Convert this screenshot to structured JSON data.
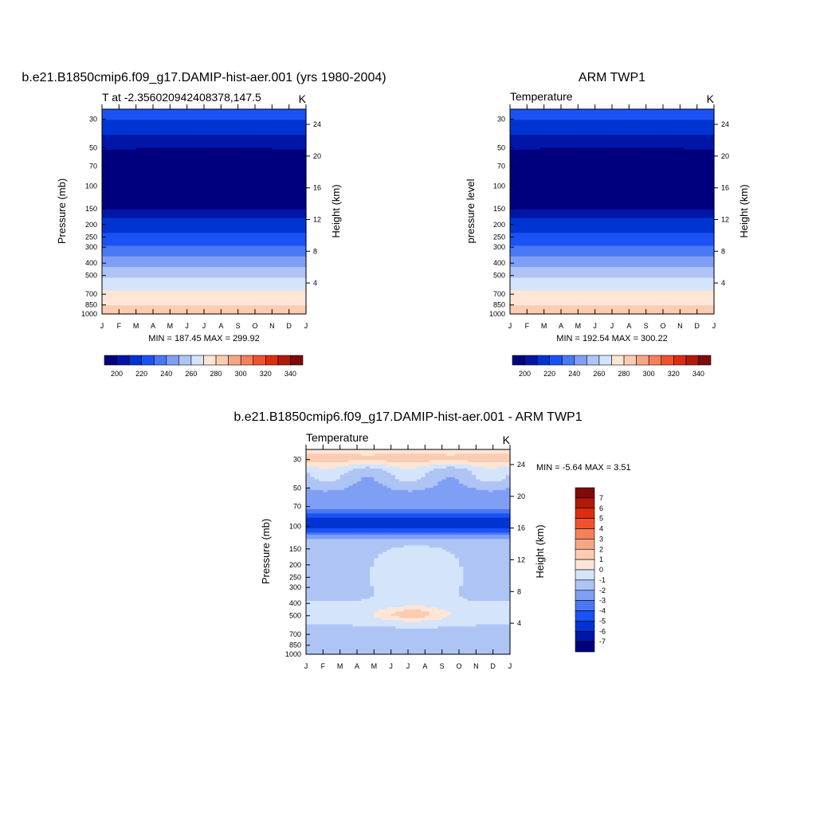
{
  "figure": {
    "panel1_title": "b.e21.B1850cmip6.f09_g17.DAMIP-hist-aer.001 (yrs 1980-2004)",
    "panel2_title": "ARM TWP1",
    "panel3_title": "b.e21.B1850cmip6.f09_g17.DAMIP-hist-aer.001 - ARM TWP1"
  },
  "chart_data": [
    {
      "type": "heatmap",
      "subtitle_left": "T at -2.356020942408378,147.5",
      "subtitle_right": "K",
      "ylabel": "Pressure (mb)",
      "ylabel_right": "Height (km)",
      "x_ticks": [
        "J",
        "F",
        "M",
        "A",
        "M",
        "J",
        "J",
        "A",
        "S",
        "O",
        "N",
        "D",
        "J"
      ],
      "y_ticks": [
        30,
        50,
        70,
        100,
        150,
        200,
        250,
        300,
        400,
        500,
        700,
        850,
        1000
      ],
      "y_log": true,
      "height_ticks": [
        24,
        20,
        16,
        12,
        8,
        4
      ],
      "minmax": "MIN = 187.45 MAX = 299.92",
      "colorbar_levels": [
        190,
        200,
        210,
        220,
        230,
        240,
        250,
        260,
        270,
        280,
        290,
        300,
        310,
        320,
        330,
        340,
        350
      ],
      "colorbar_labels": [
        "200",
        "220",
        "240",
        "260",
        "280",
        "300",
        "320",
        "340"
      ],
      "levels_profile": [
        {
          "p": 30,
          "value": 220
        },
        {
          "p": 45,
          "value": 205
        },
        {
          "p": 60,
          "value": 195
        },
        {
          "p": 140,
          "value": 190
        },
        {
          "p": 160,
          "value": 205
        },
        {
          "p": 200,
          "value": 215
        },
        {
          "p": 260,
          "value": 225
        },
        {
          "p": 320,
          "value": 235
        },
        {
          "p": 400,
          "value": 245
        },
        {
          "p": 470,
          "value": 255
        },
        {
          "p": 560,
          "value": 265
        },
        {
          "p": 760,
          "value": 275
        },
        {
          "p": 1000,
          "value": 285
        }
      ]
    },
    {
      "type": "heatmap",
      "subtitle_left": "Temperature",
      "subtitle_right": "K",
      "ylabel": "pressure level",
      "ylabel_right": "Height (km)",
      "x_ticks": [
        "J",
        "F",
        "M",
        "A",
        "M",
        "J",
        "J",
        "A",
        "S",
        "O",
        "N",
        "D",
        "J"
      ],
      "y_ticks": [
        30,
        50,
        70,
        100,
        150,
        200,
        250,
        300,
        400,
        500,
        700,
        850,
        1000
      ],
      "y_log": true,
      "height_ticks": [
        24,
        20,
        16,
        12,
        8,
        4
      ],
      "minmax": "MIN = 192.54 MAX = 300.22",
      "colorbar_levels": [
        190,
        200,
        210,
        220,
        230,
        240,
        250,
        260,
        270,
        280,
        290,
        300,
        310,
        320,
        330,
        340,
        350
      ],
      "colorbar_labels": [
        "200",
        "220",
        "240",
        "260",
        "280",
        "300",
        "320",
        "340"
      ]
    },
    {
      "type": "heatmap",
      "subtitle_left": "Temperature",
      "subtitle_right": "K",
      "ylabel": "Pressure (mb)",
      "ylabel_right": "Height (km)",
      "x_ticks": [
        "J",
        "F",
        "M",
        "A",
        "M",
        "J",
        "J",
        "A",
        "S",
        "O",
        "N",
        "D",
        "J"
      ],
      "y_ticks": [
        30,
        50,
        70,
        100,
        150,
        200,
        250,
        300,
        400,
        500,
        700,
        850,
        1000
      ],
      "y_log": true,
      "height_ticks": [
        24,
        20,
        16,
        12,
        8,
        4
      ],
      "minmax": "MIN =  -5.64 MAX =   3.51",
      "colorbar_levels": [
        -8,
        -7,
        -6,
        -5,
        -4,
        -3,
        -2,
        -1,
        0,
        1,
        2,
        3,
        4,
        5,
        6,
        7,
        8
      ],
      "colorbar_labels": [
        "7",
        "6",
        "5",
        "4",
        "3",
        "2",
        "1",
        "0",
        "-1",
        "-2",
        "-3",
        "-4",
        "-5",
        "-6",
        "-7"
      ]
    }
  ],
  "colors": {
    "temperature_palette": [
      "#00007f",
      "#0016a8",
      "#0034d2",
      "#1a52f5",
      "#4a78f5",
      "#7f9ff5",
      "#aec4f5",
      "#d4e4fb",
      "#fde6d6",
      "#fbcbb2",
      "#f7a685",
      "#f57f5a",
      "#f0522e",
      "#dd2d10",
      "#b01a0a",
      "#7f0a0a"
    ],
    "difference_palette": [
      "#00007f",
      "#0016a8",
      "#0034d2",
      "#1a52f5",
      "#4a78f5",
      "#7f9ff5",
      "#aec4f5",
      "#d4e4fb",
      "#fde6d6",
      "#fbcbb2",
      "#f7a685",
      "#f57f5a",
      "#f0522e",
      "#dd2d10",
      "#b01a0a",
      "#7f0a0a"
    ]
  }
}
